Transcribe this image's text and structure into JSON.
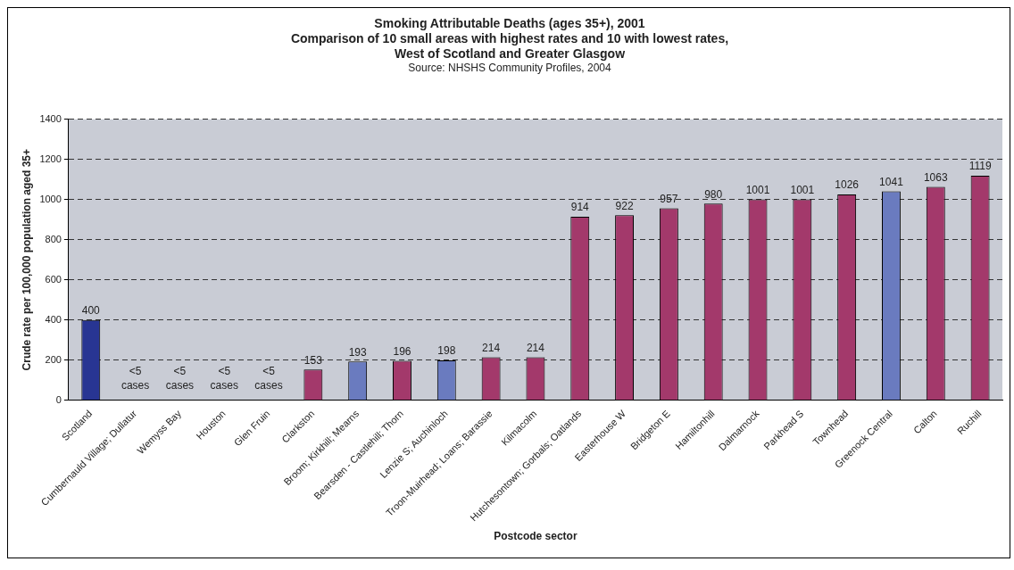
{
  "chart_data": {
    "type": "bar",
    "title": "Smoking Attributable Deaths (ages 35+), 2001\nComparison of 10 small areas with highest rates and 10 with lowest rates,\nWest of Scotland and Greater Glasgow",
    "subtitle": "Source: NHSHS Community Profiles, 2004",
    "xlabel": "Postcode sector",
    "ylabel": "Crude rate per 100,000 population aged 35+",
    "categories": [
      "Scotland",
      "Cumbernauld Village; Dullatur",
      "Wemyss Bay",
      "Houston",
      "Glen Fruin",
      "Clarkston",
      "Broom; Kirkhill; Mearns",
      "Bearsden - Castlehill; Thorn",
      "Lenzie S; Auchinloch",
      "Troon-Muirhead; Loans; Barassie",
      "Kilmacolm",
      "Hutchesontown; Gorbals; Oatlands",
      "Easterhouse W",
      "Bridgeton E",
      "Hamiltonhill",
      "Dalmarnock",
      "Parkhead S",
      "Townhead",
      "Greenock Central",
      "Calton",
      "Ruchill"
    ],
    "values": [
      400,
      null,
      null,
      null,
      null,
      153,
      193,
      196,
      198,
      214,
      214,
      914,
      922,
      957,
      980,
      1001,
      1001,
      1026,
      1041,
      1063,
      1119
    ],
    "value_labels": [
      "400",
      "<5 cases",
      "<5 cases",
      "<5 cases",
      "<5 cases",
      "153",
      "193",
      "196",
      "198",
      "214",
      "214",
      "914",
      "922",
      "957",
      "980",
      "1001",
      "1001",
      "1026",
      "1041",
      "1063",
      "1119"
    ],
    "colors": [
      "#283593",
      "#a3396b",
      "#a3396b",
      "#a3396b",
      "#a3396b",
      "#a3396b",
      "#6a7bbf",
      "#a3396b",
      "#6a7bbf",
      "#a3396b",
      "#a3396b",
      "#a3396b",
      "#a3396b",
      "#a3396b",
      "#a3396b",
      "#a3396b",
      "#a3396b",
      "#a3396b",
      "#6a7bbf",
      "#a3396b",
      "#a3396b"
    ],
    "ylim": [
      0,
      1400
    ],
    "yticks": [
      0,
      200,
      400,
      600,
      800,
      1000,
      1200,
      1400
    ],
    "grid": "y",
    "legend": false
  }
}
